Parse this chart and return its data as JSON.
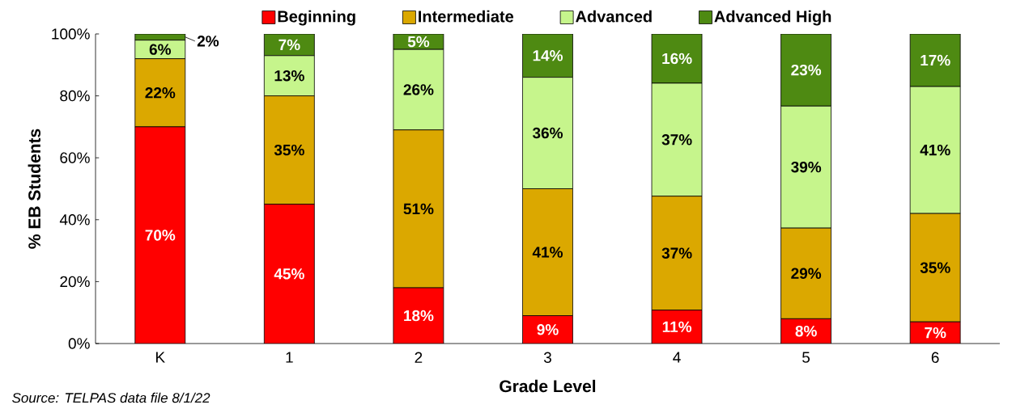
{
  "chart_data": {
    "type": "bar",
    "stacked": true,
    "xlabel": "Grade Level",
    "ylabel": "% EB Students",
    "categories": [
      "K",
      "1",
      "2",
      "3",
      "4",
      "5",
      "6"
    ],
    "series": [
      {
        "name": "Beginning",
        "color": "#ff0000",
        "values": [
          70,
          45,
          18,
          9,
          10.8,
          8,
          7
        ],
        "value_labels": [
          "70%",
          "45%",
          "18%",
          "9%",
          "11%",
          "8%",
          "7%"
        ]
      },
      {
        "name": "Intermediate",
        "color": "#dba800",
        "values": [
          22,
          35,
          51,
          41,
          36.8,
          29.3,
          35
        ],
        "value_labels": [
          "22%",
          "35%",
          "51%",
          "41%",
          "37%",
          "29%",
          "35%"
        ]
      },
      {
        "name": "Advanced",
        "color": "#c6f58c",
        "values": [
          6,
          13,
          26,
          36,
          36.5,
          39.4,
          41
        ],
        "value_labels": [
          "6%",
          "13%",
          "26%",
          "36%",
          "37%",
          "39%",
          "41%"
        ]
      },
      {
        "name": "Advanced High",
        "color": "#4e8a12",
        "values": [
          2,
          7,
          5,
          14,
          15.9,
          23.3,
          17
        ],
        "value_labels": [
          "2%",
          "7%",
          "5%",
          "14%",
          "16%",
          "23%",
          "17%"
        ]
      }
    ],
    "ylim": [
      0,
      100
    ],
    "yticks": [
      {
        "value": 0,
        "label": "0%"
      },
      {
        "value": 20,
        "label": "20%"
      },
      {
        "value": 40,
        "label": "40%"
      },
      {
        "value": 60,
        "label": "60%"
      },
      {
        "value": 80,
        "label": "80%"
      },
      {
        "value": 100,
        "label": "100%"
      }
    ],
    "grid": false,
    "legend": "top",
    "annotations": [
      "Source: TELPAS data file 8/1/22"
    ]
  }
}
